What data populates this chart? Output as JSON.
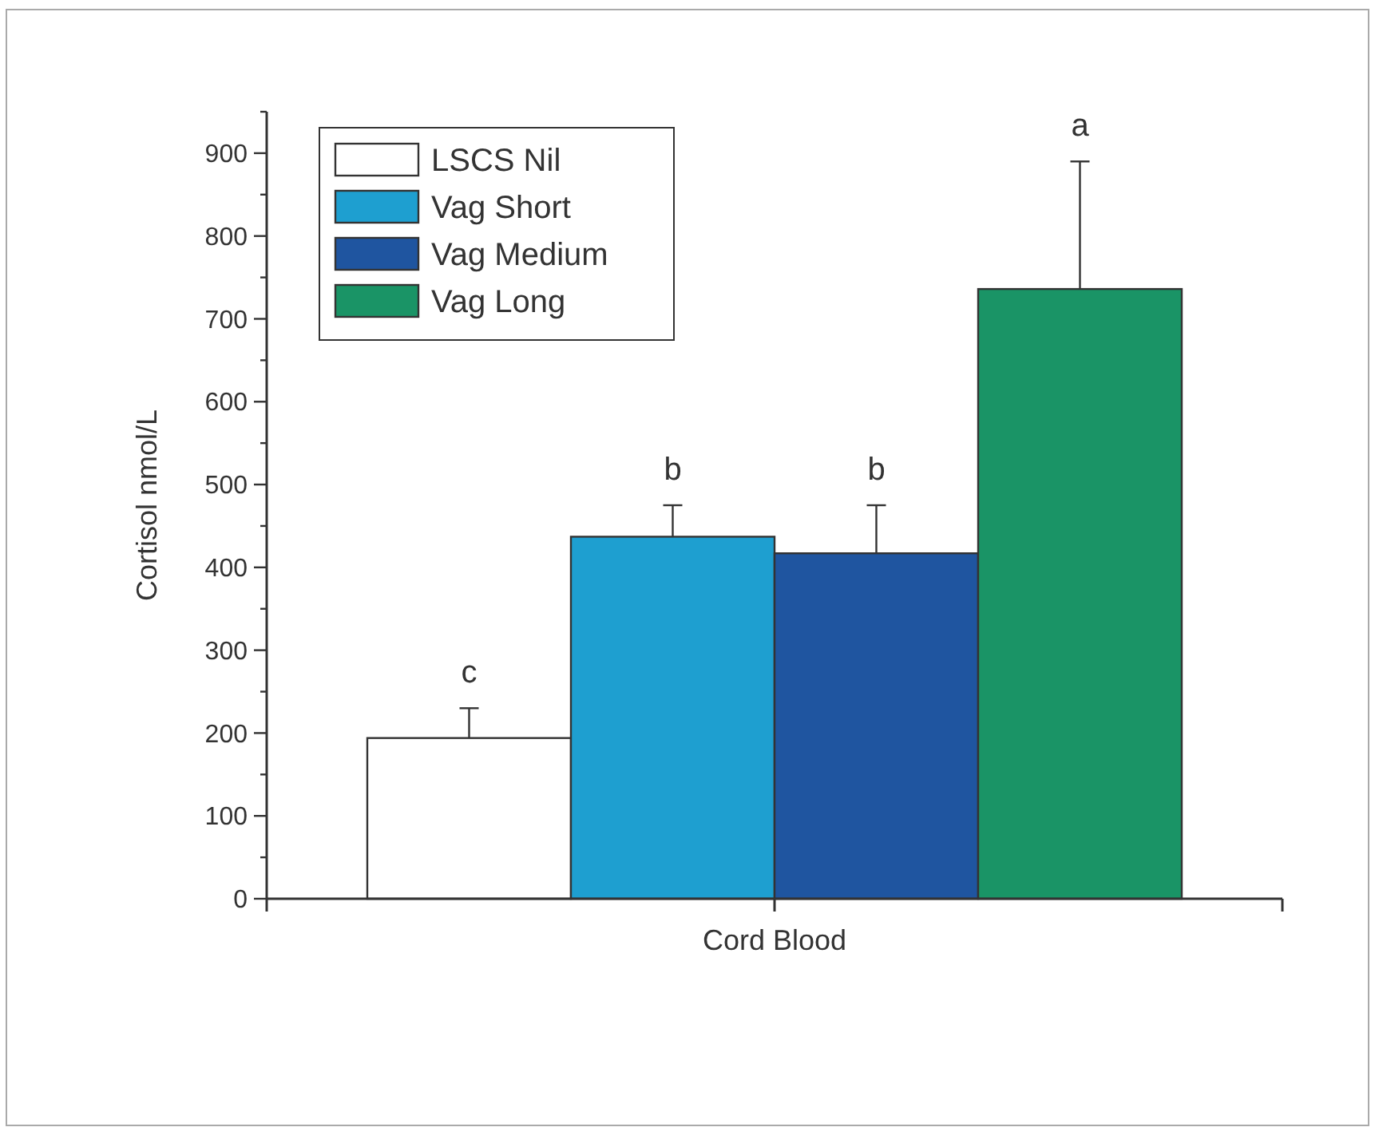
{
  "chart_data": {
    "type": "bar",
    "ylabel": "Cortisol nmol/L",
    "categories": [
      "Cord Blood"
    ],
    "series": [
      {
        "name": "LSCS Nil",
        "color": "#ffffff",
        "values": [
          194
        ],
        "errors": [
          [
            194,
            230
          ]
        ]
      },
      {
        "name": "Vag Short",
        "color": "#1e9fd0",
        "values": [
          437
        ],
        "errors": [
          [
            437,
            475
          ]
        ]
      },
      {
        "name": "Vag Medium",
        "color": "#1f55a0",
        "values": [
          417
        ],
        "errors": [
          [
            417,
            475
          ]
        ]
      },
      {
        "name": "Vag Long",
        "color": "#1a9466",
        "values": [
          736
        ],
        "errors": [
          [
            736,
            890
          ]
        ]
      }
    ],
    "ylim": [
      0,
      950
    ],
    "yticks": [
      0,
      {
        "value": 50,
        "label": null
      },
      100,
      {
        "value": 150,
        "label": null
      },
      200,
      {
        "value": 250,
        "label": null
      },
      300,
      {
        "value": 350,
        "label": null
      },
      400,
      {
        "value": 450,
        "label": null
      },
      500,
      {
        "value": 550,
        "label": null
      },
      600,
      {
        "value": 650,
        "label": null
      },
      700,
      {
        "value": 750,
        "label": null
      },
      800,
      {
        "value": 850,
        "label": null
      },
      900,
      {
        "value": 950,
        "label": null
      }
    ],
    "annotations": [
      "c",
      "b",
      "b",
      "a"
    ],
    "legend": "top left",
    "grid": false
  }
}
